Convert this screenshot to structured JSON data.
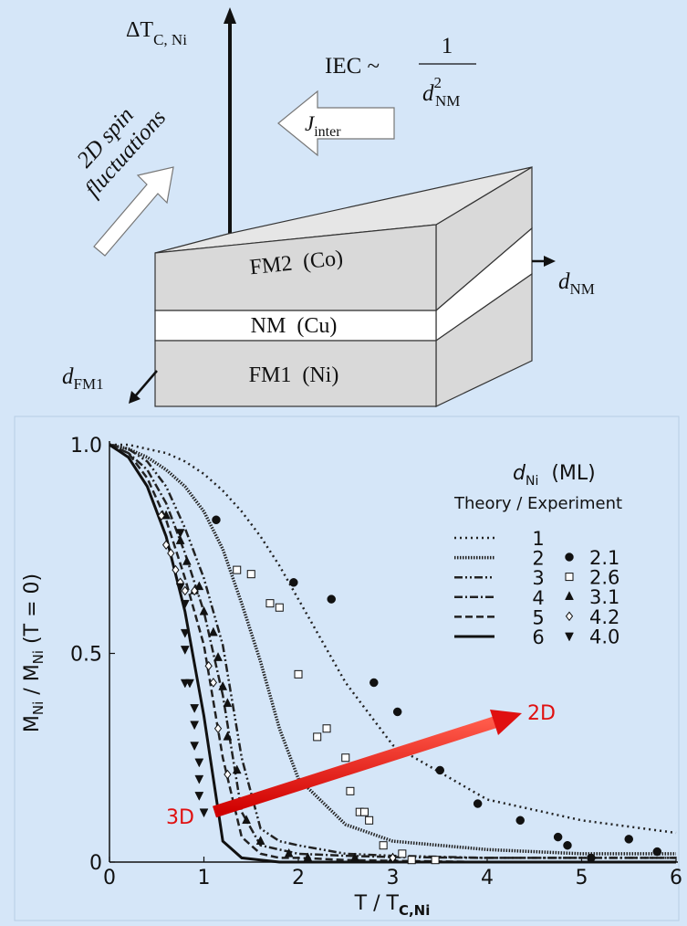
{
  "diagram": {
    "axis_label": [
      "ΔT",
      "C, Ni"
    ],
    "iec": "IEC ~",
    "iec_numerator": "1",
    "iec_denominator": [
      "d",
      "2",
      "NM"
    ],
    "j_inter": [
      "J",
      "inter"
    ],
    "spin_fluct": [
      "2D spin",
      "fluctuations"
    ],
    "layers": [
      "FM2  (Co)",
      "NM  (Cu)",
      "FM1  (Ni)"
    ],
    "d_nm": [
      "d",
      "NM"
    ],
    "d_fm1": [
      "d",
      "FM1"
    ]
  },
  "chart_data": {
    "type": "line",
    "ylabel": [
      "M",
      "Ni",
      " / M",
      "Ni",
      " (T = 0)"
    ],
    "xlabel": [
      "T / T",
      "C,Ni"
    ],
    "legend_title": [
      "d",
      "Ni",
      "(ML)"
    ],
    "legend_header": "Theory / Experiment",
    "annotations": [
      "3D",
      "2D"
    ],
    "xlim": [
      0,
      6
    ],
    "ylim": [
      0,
      1
    ],
    "xticks": [
      0,
      1,
      2,
      3,
      4,
      5,
      6
    ],
    "yticks": [
      0,
      0.5,
      {
        "value": 1,
        "label": "1.0"
      }
    ],
    "grid": false,
    "x": [
      0,
      0.2,
      0.4,
      0.6,
      0.8,
      1.0,
      1.2,
      1.4,
      1.6,
      1.8,
      2.0,
      2.5,
      3,
      4,
      5,
      6
    ],
    "series": [
      {
        "name": "1",
        "type": "line",
        "color": "#222222",
        "linestyle": "dotted",
        "values": [
          1,
          1,
          0.99,
          0.98,
          0.96,
          0.93,
          0.89,
          0.84,
          0.78,
          0.71,
          0.63,
          0.43,
          0.28,
          0.15,
          0.1,
          0.07
        ]
      },
      {
        "name": "2",
        "type": "line",
        "color": "#222222",
        "linestyle": "densely-dotted",
        "values": [
          1,
          0.99,
          0.97,
          0.94,
          0.9,
          0.84,
          0.75,
          0.62,
          0.48,
          0.32,
          0.2,
          0.09,
          0.05,
          0.03,
          0.02,
          0.02
        ]
      },
      {
        "name": "3",
        "type": "line",
        "color": "#222222",
        "linestyle": "dash-dot-dot",
        "values": [
          1,
          0.99,
          0.96,
          0.9,
          0.8,
          0.68,
          0.52,
          0.25,
          0.08,
          0.05,
          0.04,
          0.02,
          0.015,
          0.01,
          0.01,
          0.01
        ]
      },
      {
        "name": "4",
        "type": "line",
        "color": "#222222",
        "linestyle": "dash-dot",
        "values": [
          1,
          0.98,
          0.94,
          0.86,
          0.74,
          0.6,
          0.4,
          0.12,
          0.04,
          0.03,
          0.02,
          0.015,
          0.012,
          0.01,
          0.01,
          0.01
        ]
      },
      {
        "name": "5",
        "type": "line",
        "color": "#222222",
        "linestyle": "dashed",
        "values": [
          1,
          0.98,
          0.92,
          0.82,
          0.68,
          0.52,
          0.25,
          0.06,
          0.02,
          0.01,
          0.01,
          0.005,
          0.003,
          0,
          0,
          0
        ]
      },
      {
        "name": "6",
        "type": "line",
        "color": "#111111",
        "linestyle": "solid",
        "values": [
          1,
          0.97,
          0.9,
          0.78,
          0.6,
          0.35,
          0.05,
          0.01,
          0.005,
          0,
          0,
          0,
          0,
          0,
          0,
          0
        ]
      },
      {
        "name": "2.1",
        "type": "scatter",
        "color": "#111111",
        "marker": "circle",
        "x": [
          1.13,
          1.95,
          2.35,
          2.8,
          3.05,
          3.5,
          3.9,
          4.35,
          4.75,
          4.85,
          5.1,
          5.5,
          5.8
        ],
        "values": [
          0.82,
          0.67,
          0.63,
          0.43,
          0.36,
          0.22,
          0.14,
          0.1,
          0.06,
          0.04,
          0.01,
          0.055,
          0.025
        ]
      },
      {
        "name": "2.6",
        "type": "scatter",
        "color": "#111111",
        "marker": "square-open",
        "x": [
          1.35,
          1.5,
          1.7,
          1.8,
          2.0,
          2.2,
          2.3,
          2.5,
          2.55,
          2.65,
          2.7,
          2.75,
          2.9,
          3.1,
          3.2,
          3.45
        ],
        "values": [
          0.7,
          0.69,
          0.62,
          0.61,
          0.45,
          0.3,
          0.32,
          0.25,
          0.17,
          0.12,
          0.12,
          0.1,
          0.04,
          0.02,
          0.005,
          0.005
        ]
      },
      {
        "name": "3.1",
        "type": "scatter",
        "color": "#111111",
        "marker": "triangle-up",
        "x": [
          0.6,
          0.75,
          0.82,
          0.9,
          0.95,
          1.0,
          1.1,
          1.15,
          1.2,
          1.25,
          1.25,
          1.35,
          1.45,
          1.6,
          1.9,
          2.1,
          2.6,
          3.0
        ],
        "values": [
          0.83,
          0.77,
          0.72,
          0.65,
          0.66,
          0.6,
          0.55,
          0.49,
          0.42,
          0.38,
          0.3,
          0.22,
          0.1,
          0.05,
          0.02,
          0.01,
          0.01,
          0.01
        ]
      },
      {
        "name": "4.2",
        "type": "scatter",
        "color": "#111111",
        "marker": "diamond-open",
        "x": [
          0.55,
          0.6,
          0.65,
          0.7,
          0.75,
          0.8,
          0.9,
          1.05,
          1.1,
          1.15,
          1.25,
          3.0
        ],
        "values": [
          0.83,
          0.76,
          0.74,
          0.7,
          0.67,
          0.65,
          0.65,
          0.47,
          0.43,
          0.32,
          0.21,
          0.01
        ]
      },
      {
        "name": "4.0",
        "type": "scatter",
        "color": "#111111",
        "marker": "triangle-down",
        "x": [
          0.75,
          0.75,
          0.8,
          0.8,
          0.8,
          0.8,
          0.85,
          0.9,
          0.9,
          0.9,
          0.95,
          0.95,
          0.95,
          1.0
        ],
        "values": [
          0.79,
          0.66,
          0.62,
          0.55,
          0.51,
          0.43,
          0.43,
          0.37,
          0.33,
          0.28,
          0.24,
          0.2,
          0.16,
          0.12
        ]
      }
    ]
  }
}
